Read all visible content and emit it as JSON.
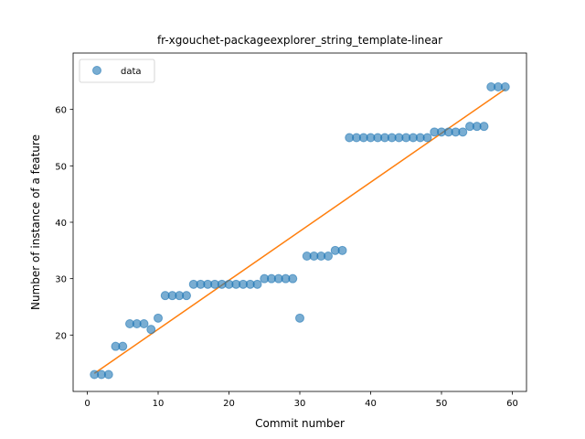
{
  "chart_data": {
    "type": "scatter",
    "title": "fr-xgouchet-packageexplorer_string_template-linear",
    "xlabel": "Commit number",
    "ylabel": "Number of instance of a feature",
    "xlim": [
      -2,
      62
    ],
    "ylim": [
      10,
      70
    ],
    "xticks": [
      0,
      10,
      20,
      30,
      40,
      50,
      60
    ],
    "yticks": [
      20,
      30,
      40,
      50,
      60
    ],
    "grid": false,
    "legend": {
      "entries": [
        "data"
      ],
      "placement": "top-left"
    },
    "series": [
      {
        "name": "data",
        "kind": "points",
        "color": "#1f77b4",
        "x": [
          1,
          2,
          3,
          4,
          5,
          6,
          7,
          8,
          9,
          10,
          11,
          12,
          13,
          14,
          15,
          16,
          17,
          18,
          19,
          20,
          21,
          22,
          23,
          24,
          25,
          26,
          27,
          28,
          29,
          30,
          31,
          32,
          33,
          34,
          35,
          36,
          37,
          38,
          39,
          40,
          41,
          42,
          43,
          44,
          45,
          46,
          47,
          48,
          49,
          50,
          51,
          52,
          53,
          54,
          55,
          56,
          57,
          58,
          59
        ],
        "y": [
          13,
          13,
          13,
          18,
          18,
          22,
          22,
          22,
          21,
          23,
          27,
          27,
          27,
          27,
          29,
          29,
          29,
          29,
          29,
          29,
          29,
          29,
          29,
          29,
          30,
          30,
          30,
          30,
          30,
          23,
          34,
          34,
          34,
          34,
          35,
          35,
          55,
          55,
          55,
          55,
          55,
          55,
          55,
          55,
          55,
          55,
          55,
          55,
          56,
          56,
          56,
          56,
          56,
          57,
          57,
          57,
          64,
          64,
          64
        ]
      },
      {
        "kind": "line",
        "color": "#ff7f0e",
        "x": [
          1,
          59
        ],
        "y": [
          13.2,
          63.6
        ]
      }
    ]
  }
}
